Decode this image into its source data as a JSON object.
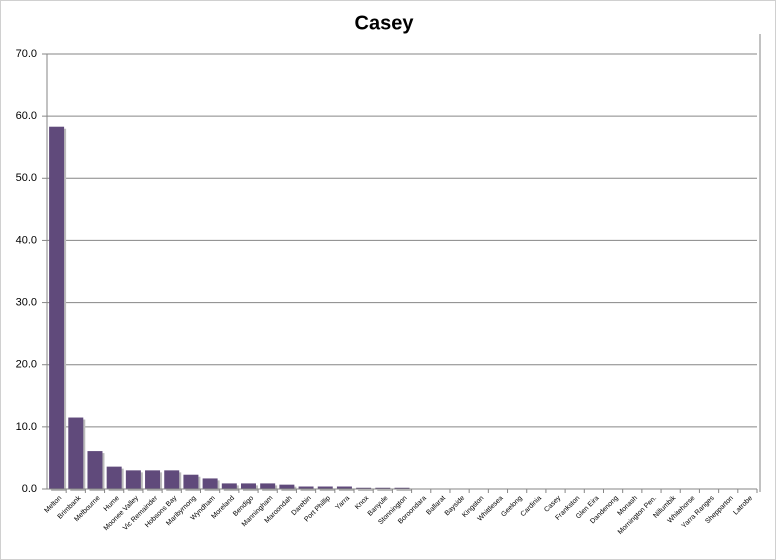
{
  "chart_data": {
    "type": "bar",
    "title": "Casey",
    "categories": [
      "Melton",
      "Brimbank",
      "Melbourne",
      "Hume",
      "Moonee Valley",
      "Vic Remainder",
      "Hobsons Bay",
      "Maribyrnong",
      "Wyndham",
      "Moreland",
      "Bendigo",
      "Manningham",
      "Maroondah",
      "Darebin",
      "Port Phillip",
      "Yarra",
      "Knox",
      "Banyule",
      "Stonnington",
      "Boroondara",
      "Ballarat",
      "Bayside",
      "Kingston",
      "Whittlesea",
      "Geelong",
      "Cardinia",
      "Casey",
      "Frankston",
      "Glen Eira",
      "Dandenong",
      "Monash",
      "Mornington Pen.",
      "Nillumbik",
      "Whitehorse",
      "Yarra Ranges",
      "Shepparton",
      "Latrobe"
    ],
    "values": [
      58.3,
      11.5,
      6.1,
      3.6,
      3.0,
      3.0,
      3.0,
      2.3,
      1.7,
      0.9,
      0.9,
      0.9,
      0.7,
      0.4,
      0.4,
      0.4,
      0.2,
      0.2,
      0.2,
      0,
      0,
      0,
      0,
      0,
      0,
      0,
      0,
      0,
      0,
      0,
      0,
      0,
      0,
      0,
      0,
      0,
      0
    ],
    "color": "#604a7b",
    "ylim": [
      0,
      70
    ],
    "yticks": [
      {
        "value": 0,
        "label": "0.0"
      },
      {
        "value": 10,
        "label": "10.0"
      },
      {
        "value": 20,
        "label": "20.0"
      },
      {
        "value": 30,
        "label": "30.0"
      },
      {
        "value": 40,
        "label": "40.0"
      },
      {
        "value": 50,
        "label": "50.0"
      },
      {
        "value": 60,
        "label": "60.0"
      },
      {
        "value": 70,
        "label": "70.0"
      }
    ],
    "grid": true
  }
}
